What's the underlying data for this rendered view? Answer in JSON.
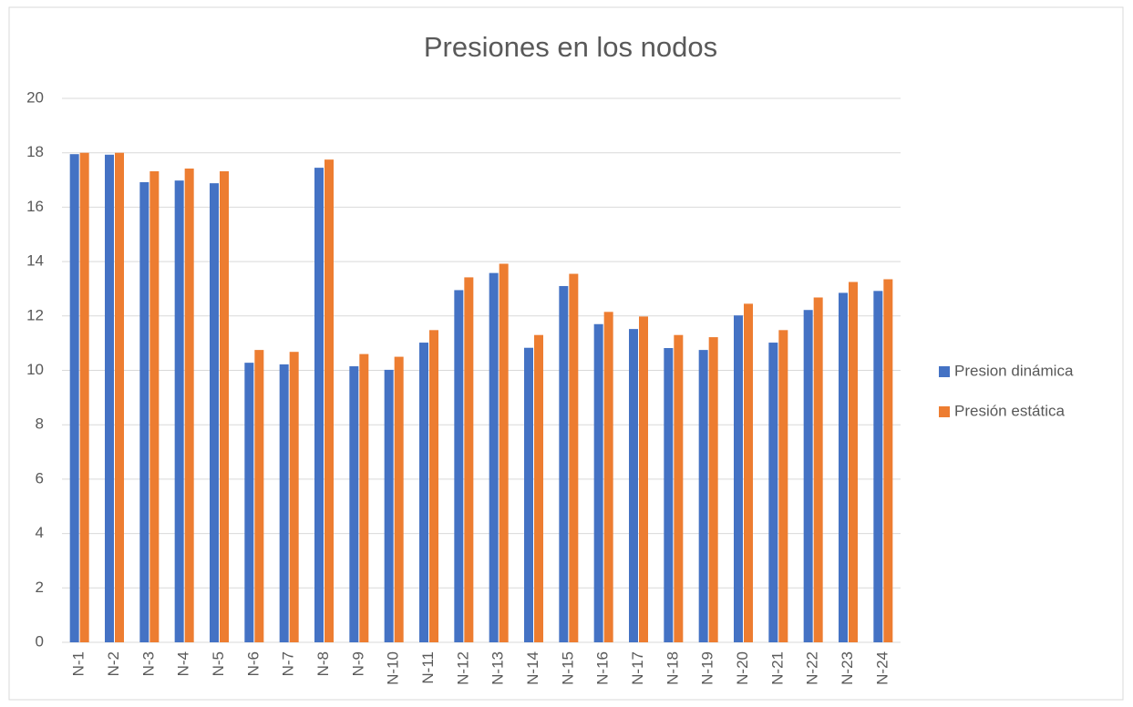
{
  "chart_data": {
    "type": "bar",
    "title": "Presiones en los nodos",
    "categories": [
      "N-1",
      "N-2",
      "N-3",
      "N-4",
      "N-5",
      "N-6",
      "N-7",
      "N-8",
      "N-9",
      "N-10",
      "N-11",
      "N-12",
      "N-13",
      "N-14",
      "N-15",
      "N-16",
      "N-17",
      "N-18",
      "N-19",
      "N-20",
      "N-21",
      "N-22",
      "N-23",
      "N-24"
    ],
    "series": [
      {
        "name": "Presion dinámica",
        "color": "#4472c4",
        "values": [
          17.95,
          17.93,
          16.92,
          16.98,
          16.88,
          10.28,
          10.22,
          17.45,
          10.15,
          10.02,
          11.02,
          12.95,
          13.58,
          10.83,
          13.1,
          11.7,
          11.52,
          10.82,
          10.75,
          12.02,
          11.02,
          12.22,
          12.85,
          12.92
        ]
      },
      {
        "name": "Presión estática",
        "color": "#ed7d31",
        "values": [
          18.0,
          18.0,
          17.32,
          17.42,
          17.32,
          10.75,
          10.68,
          17.75,
          10.6,
          10.5,
          11.48,
          13.42,
          13.92,
          11.3,
          13.55,
          12.15,
          11.98,
          11.3,
          11.22,
          12.45,
          11.48,
          12.68,
          13.25,
          13.35
        ]
      }
    ],
    "ylim": [
      0,
      20
    ],
    "yticks": [
      0,
      2,
      4,
      6,
      8,
      10,
      12,
      14,
      16,
      18,
      20
    ],
    "grid": true,
    "legend": "right"
  }
}
